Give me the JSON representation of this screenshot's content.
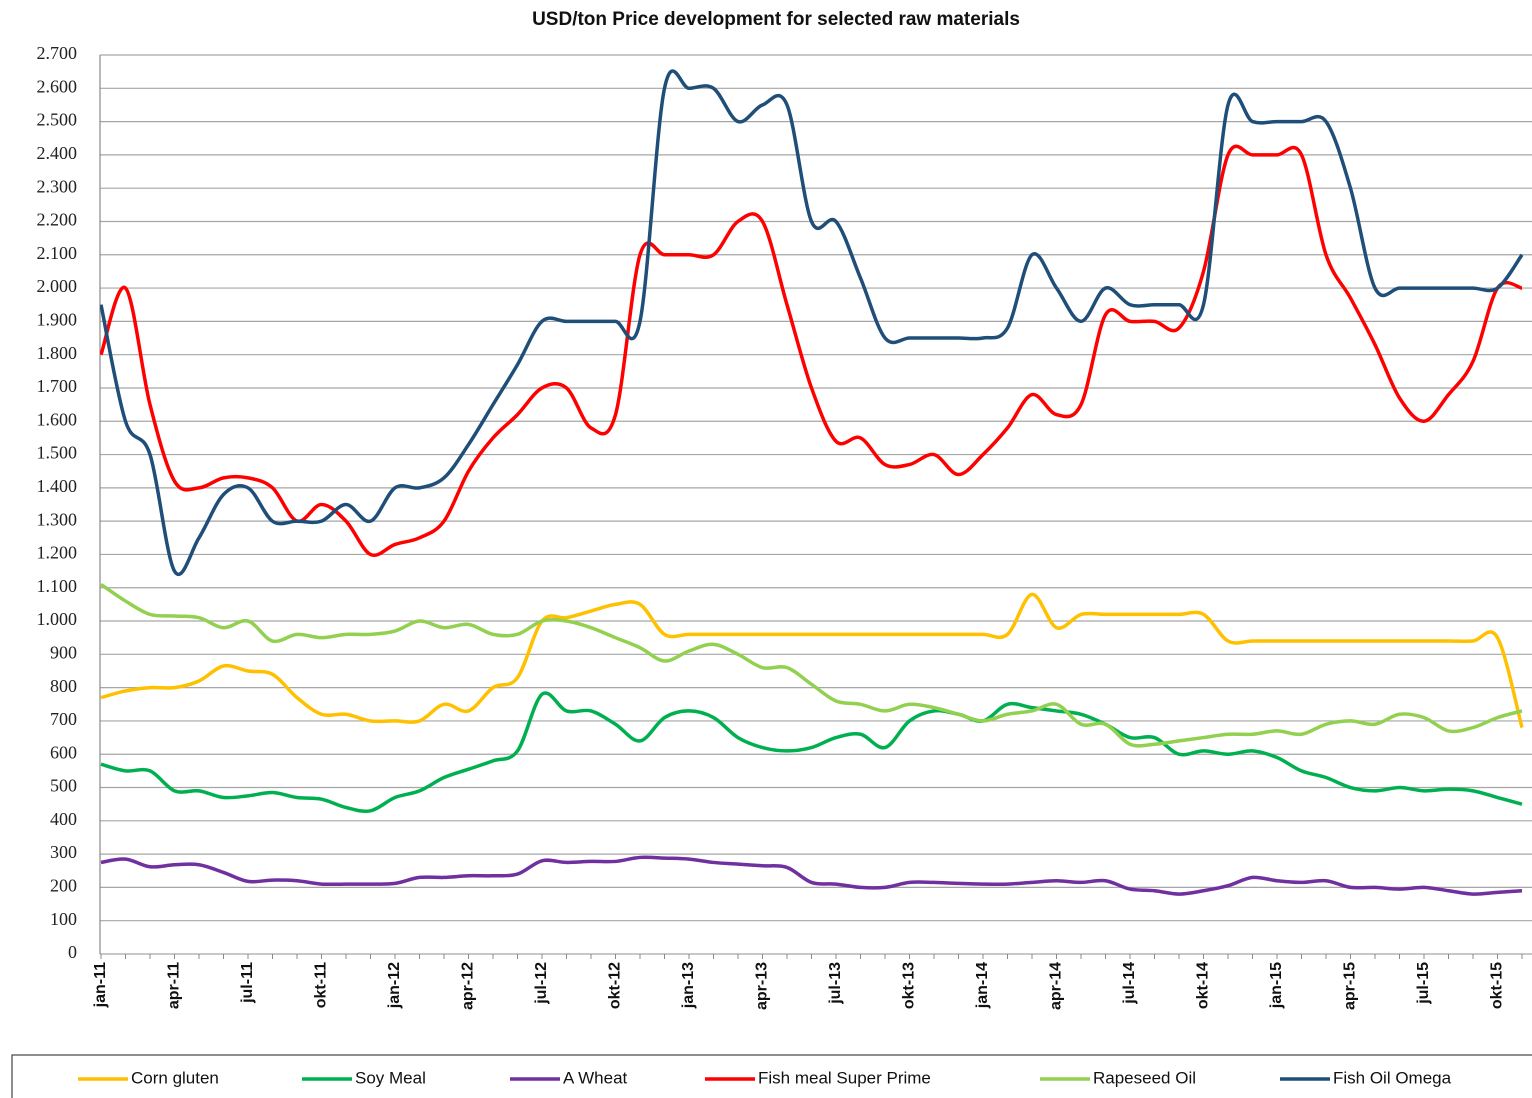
{
  "chart_data": {
    "type": "line",
    "title": "USD/ton Price development for selected raw materials",
    "categories": [
      "jan-11",
      null,
      null,
      "apr-11",
      null,
      null,
      "jul-11",
      null,
      null,
      "okt-11",
      null,
      null,
      "jan-12",
      null,
      null,
      "apr-12",
      null,
      null,
      "jul-12",
      null,
      null,
      "okt-12",
      null,
      null,
      "jan-13",
      null,
      null,
      "apr-13",
      null,
      null,
      "jul-13",
      null,
      null,
      "okt-13",
      null,
      null,
      "jan-14",
      null,
      null,
      "apr-14",
      null,
      null,
      "jul-14",
      null,
      null,
      "okt-14",
      null,
      null,
      "jan-15",
      null,
      null,
      "apr-15",
      null,
      null,
      "jul-15",
      null,
      null,
      "okt-15",
      null
    ],
    "series": [
      {
        "name": "Corn gluten",
        "color": "#ffc000",
        "values": [
          770,
          790,
          800,
          800,
          820,
          865,
          850,
          840,
          770,
          720,
          720,
          700,
          700,
          700,
          750,
          730,
          800,
          830,
          1000,
          1010,
          1030,
          1050,
          1050,
          960,
          960,
          960,
          960,
          960,
          960,
          960,
          960,
          960,
          960,
          960,
          960,
          960,
          960,
          960,
          1080,
          980,
          1020,
          1020,
          1020,
          1020,
          1020,
          1020,
          940,
          940,
          940,
          940,
          940,
          940,
          940,
          940,
          940,
          940,
          940,
          950,
          680
        ]
      },
      {
        "name": "Soy Meal",
        "color": "#00b050",
        "values": [
          570,
          550,
          550,
          490,
          490,
          470,
          475,
          485,
          470,
          465,
          440,
          430,
          470,
          490,
          530,
          555,
          580,
          610,
          780,
          730,
          730,
          690,
          640,
          710,
          730,
          710,
          650,
          620,
          610,
          620,
          650,
          660,
          620,
          700,
          730,
          720,
          700,
          750,
          740,
          730,
          720,
          690,
          650,
          650,
          600,
          610,
          600,
          610,
          590,
          550,
          530,
          500,
          490,
          500,
          490,
          495,
          490,
          470,
          450
        ]
      },
      {
        "name": "A Wheat",
        "color": "#7030a0",
        "values": [
          275,
          285,
          262,
          268,
          268,
          245,
          218,
          222,
          220,
          210,
          210,
          210,
          212,
          230,
          230,
          235,
          235,
          240,
          280,
          275,
          278,
          278,
          290,
          288,
          285,
          275,
          270,
          265,
          260,
          215,
          210,
          200,
          200,
          215,
          215,
          212,
          210,
          210,
          215,
          220,
          215,
          220,
          195,
          190,
          180,
          190,
          205,
          230,
          220,
          215,
          220,
          200,
          200,
          195,
          200,
          190,
          180,
          185,
          190
        ]
      },
      {
        "name": "Fish meal Super Prime",
        "color": "#ff0000",
        "values": [
          1800,
          2000,
          1650,
          1420,
          1400,
          1430,
          1430,
          1400,
          1300,
          1350,
          1300,
          1200,
          1230,
          1250,
          1300,
          1450,
          1550,
          1620,
          1700,
          1700,
          1580,
          1620,
          2100,
          2100,
          2100,
          2100,
          2200,
          2200,
          1950,
          1700,
          1540,
          1550,
          1470,
          1470,
          1500,
          1440,
          1500,
          1580,
          1680,
          1620,
          1650,
          1920,
          1900,
          1900,
          1880,
          2050,
          2400,
          2400,
          2400,
          2400,
          2100,
          1970,
          1830,
          1670,
          1600,
          1680,
          1780,
          2000,
          2000
        ]
      },
      {
        "name": "Rapeseed Oil",
        "color": "#92d050",
        "values": [
          1110,
          1060,
          1020,
          1015,
          1010,
          980,
          1000,
          940,
          960,
          950,
          960,
          960,
          970,
          1000,
          980,
          990,
          960,
          960,
          1000,
          1000,
          980,
          950,
          920,
          880,
          910,
          930,
          900,
          860,
          860,
          810,
          760,
          750,
          730,
          750,
          740,
          720,
          700,
          720,
          730,
          750,
          690,
          690,
          630,
          630,
          640,
          650,
          660,
          660,
          670,
          660,
          690,
          700,
          690,
          720,
          710,
          670,
          680,
          710,
          730
        ]
      },
      {
        "name": "Fish Oil Omega",
        "color": "#1f4e79",
        "values": [
          1950,
          1600,
          1500,
          1150,
          1250,
          1380,
          1400,
          1300,
          1300,
          1300,
          1350,
          1300,
          1400,
          1400,
          1430,
          1530,
          1650,
          1770,
          1900,
          1900,
          1900,
          1900,
          1900,
          2600,
          2600,
          2600,
          2500,
          2550,
          2550,
          2200,
          2200,
          2030,
          1850,
          1850,
          1850,
          1850,
          1850,
          1880,
          2100,
          2000,
          1900,
          2000,
          1950,
          1950,
          1950,
          1950,
          2550,
          2500,
          2500,
          2500,
          2500,
          2300,
          2000,
          2000,
          2000,
          2000,
          2000,
          2000,
          2100
        ]
      }
    ],
    "ylim": [
      0,
      2700
    ],
    "yticks": [
      0,
      100,
      200,
      300,
      400,
      500,
      600,
      700,
      800,
      900,
      {
        "value": 1000,
        "label": "1.000"
      },
      {
        "value": 1100,
        "label": "1.100"
      },
      {
        "value": 1200,
        "label": "1.200"
      },
      {
        "value": 1300,
        "label": "1.300"
      },
      {
        "value": 1400,
        "label": "1.400"
      },
      {
        "value": 1500,
        "label": "1.500"
      },
      {
        "value": 1600,
        "label": "1.600"
      },
      {
        "value": 1700,
        "label": "1.700"
      },
      {
        "value": 1800,
        "label": "1.800"
      },
      {
        "value": 1900,
        "label": "1.900"
      },
      {
        "value": 2000,
        "label": "2.000"
      },
      {
        "value": 2100,
        "label": "2.100"
      },
      {
        "value": 2200,
        "label": "2.200"
      },
      {
        "value": 2300,
        "label": "2.300"
      },
      {
        "value": 2400,
        "label": "2.400"
      },
      {
        "value": 2500,
        "label": "2.500"
      },
      {
        "value": 2600,
        "label": "2.600"
      },
      {
        "value": 2700,
        "label": "2.700"
      }
    ],
    "grid": true,
    "legend": "bottom"
  }
}
